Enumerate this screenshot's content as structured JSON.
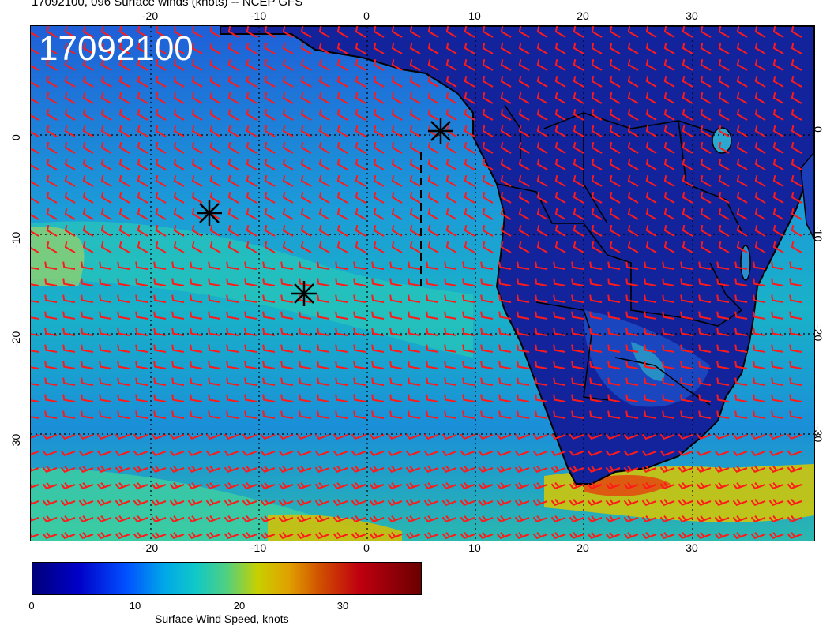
{
  "title": "17092100, 096 Surface winds (knots) -- NCEP GFS",
  "stamp": "17092100",
  "axes": {
    "top_ticks": [
      "-20",
      "-10",
      "0",
      "10",
      "20",
      "30"
    ],
    "bottom_ticks": [
      "-20",
      "-10",
      "0",
      "10",
      "20",
      "30"
    ],
    "left_ticks": [
      "0",
      "-10",
      "-20",
      "-30"
    ],
    "right_ticks": [
      "0",
      "-10",
      "-20",
      "-30"
    ]
  },
  "colorbar": {
    "label": "Surface Wind Speed, knots",
    "ticks": [
      "0",
      "10",
      "20",
      "30"
    ]
  },
  "colors": {
    "barb": "#ff1a1a",
    "land_base": "#10209a",
    "ocean_base": "#2a7fe0",
    "coast": "#000000"
  },
  "markers": [
    {
      "name": "asterisk-1",
      "lon": 6.5,
      "lat": 0.5
    },
    {
      "name": "asterisk-2",
      "lon": -14.5,
      "lat": -8.5
    },
    {
      "name": "asterisk-3",
      "lon": -6,
      "lat": -16.5
    }
  ]
}
